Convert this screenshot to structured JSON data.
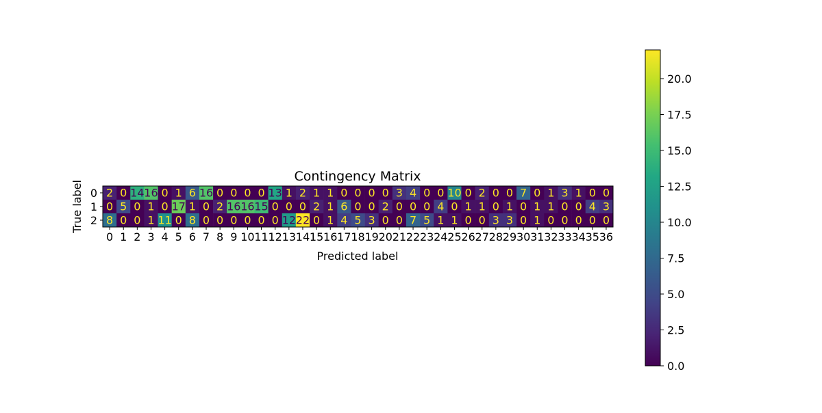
{
  "chart_data": {
    "type": "heatmap",
    "title": "Contingency Matrix",
    "xlabel": "Predicted label",
    "ylabel": "True label",
    "row_labels": [
      "0",
      "1",
      "2"
    ],
    "col_labels": [
      "0",
      "1",
      "2",
      "3",
      "4",
      "5",
      "6",
      "7",
      "8",
      "9",
      "10",
      "11",
      "12",
      "13",
      "14",
      "15",
      "16",
      "17",
      "18",
      "19",
      "20",
      "21",
      "22",
      "23",
      "24",
      "25",
      "26",
      "27",
      "28",
      "29",
      "30",
      "31",
      "32",
      "33",
      "34",
      "35",
      "36"
    ],
    "values": [
      [
        2,
        0,
        14,
        16,
        0,
        1,
        6,
        16,
        0,
        0,
        0,
        0,
        13,
        1,
        2,
        1,
        1,
        0,
        0,
        0,
        0,
        3,
        4,
        0,
        0,
        10,
        0,
        2,
        0,
        0,
        7,
        0,
        1,
        3,
        1,
        0,
        0
      ],
      [
        0,
        5,
        0,
        1,
        0,
        17,
        1,
        0,
        2,
        16,
        16,
        15,
        0,
        0,
        0,
        2,
        1,
        6,
        0,
        0,
        2,
        0,
        0,
        0,
        4,
        0,
        1,
        1,
        0,
        1,
        0,
        1,
        1,
        0,
        0,
        4,
        3
      ],
      [
        8,
        0,
        0,
        1,
        11,
        0,
        8,
        0,
        0,
        0,
        0,
        0,
        0,
        12,
        22,
        0,
        1,
        4,
        5,
        3,
        0,
        0,
        7,
        5,
        1,
        1,
        0,
        0,
        3,
        3,
        0,
        1,
        0,
        0,
        0,
        0,
        0
      ]
    ],
    "colormap": "viridis",
    "color_range": [
      0,
      22
    ],
    "colorbar_ticks": [
      "0.0",
      "2.5",
      "5.0",
      "7.5",
      "10.0",
      "12.5",
      "15.0",
      "17.5",
      "20.0"
    ],
    "colorbar_tick_values": [
      0,
      2.5,
      5,
      7.5,
      10,
      12.5,
      15,
      17.5,
      20
    ],
    "text_color_dark": "#fde725",
    "text_color_light": "#440154"
  }
}
